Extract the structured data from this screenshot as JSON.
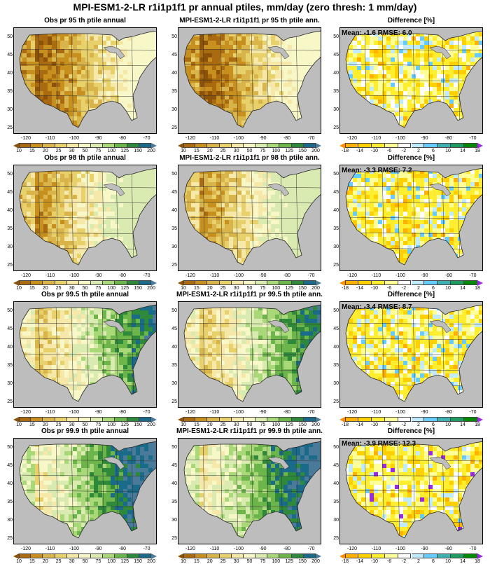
{
  "title": "MPI-ESM1-2-LR r1i1p1f1 pr annual ptiles, mm/day (zero thresh: 1 mm/day)",
  "lat_ticks": [
    "50",
    "45",
    "40",
    "35",
    "30",
    "25"
  ],
  "lon_ticks": [
    "-120",
    "-110",
    "-100",
    "-90",
    "-80",
    "-70"
  ],
  "precip_colorbar": {
    "labels": [
      "10",
      "15",
      "20",
      "25",
      "30",
      "50",
      "75",
      "100",
      "125",
      "150",
      "200"
    ],
    "colors": [
      "#8c5208",
      "#a96a10",
      "#c7901e",
      "#d9b44a",
      "#e8d06a",
      "#f5e8a8",
      "#f7f7c8",
      "#d9ebb0",
      "#a8d878",
      "#6cb54a",
      "#2e8a3a",
      "#1a6a8a",
      "#4a7a9a"
    ]
  },
  "diff_colorbar": {
    "labels": [
      "-18",
      "-14",
      "-10",
      "-6",
      "-2",
      "2",
      "6",
      "10",
      "14",
      "18"
    ],
    "colors": [
      "#ff8c00",
      "#ffb000",
      "#ffd000",
      "#ffee30",
      "#ffff9a",
      "#ffffff",
      "#bfeaff",
      "#66ccff",
      "#3fb0b0",
      "#1f9a60",
      "#008a00",
      "#9a2ae0"
    ]
  },
  "rows": [
    {
      "obs_title": "Obs pr 95 th ptile annual",
      "model_title": "MPI-ESM1-2-LR r1i1p1f1 pr 95 th ptile ann.",
      "diff_title": "Difference [%]",
      "stats": "Mean: -1.6  RMSE: 6.0"
    },
    {
      "obs_title": "Obs pr 98 th ptile annual",
      "model_title": "MPI-ESM1-2-LR r1i1p1f1 pr 98 th ptile ann.",
      "diff_title": "Difference [%]",
      "stats": "Mean: -3.3  RMSE: 7.2"
    },
    {
      "obs_title": "Obs pr 99.5 th ptile annual",
      "model_title": "MPI-ESM1-2-LR r1i1p1f1 pr 99.5 th ptile ann.",
      "diff_title": "Difference [%]",
      "stats": "Mean: -3.4  RMSE: 8.7"
    },
    {
      "obs_title": "Obs pr 99.9 th ptile annual",
      "model_title": "MPI-ESM1-2-LR r1i1p1f1 pr 99.9 th ptile ann.",
      "diff_title": "Difference [%]",
      "stats": "Mean: -3.9  RMSE: 12.3"
    }
  ]
}
